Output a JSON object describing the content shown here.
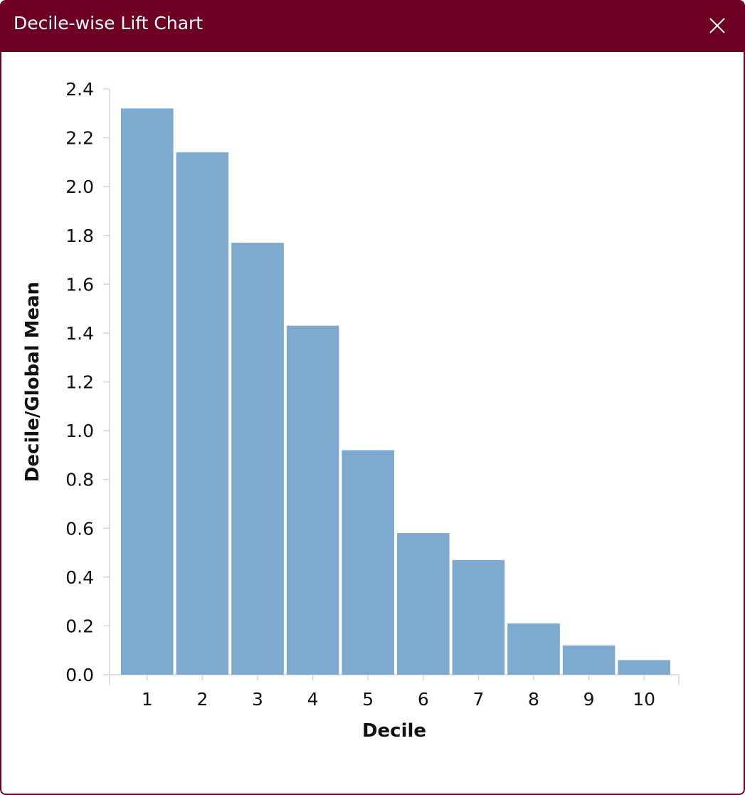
{
  "window": {
    "title": "Decile-wise Lift Chart",
    "close_icon": "close-icon",
    "title_bar_color": "#6e0023"
  },
  "chart_data": {
    "type": "bar",
    "title": "",
    "xlabel": "Decile",
    "ylabel": "Decile/Global Mean",
    "categories": [
      "1",
      "2",
      "3",
      "4",
      "5",
      "6",
      "7",
      "8",
      "9",
      "10"
    ],
    "values": [
      2.32,
      2.14,
      1.77,
      1.43,
      0.92,
      0.58,
      0.47,
      0.21,
      0.12,
      0.06
    ],
    "ylim": [
      0,
      2.4
    ],
    "yticks": [
      "0.0",
      "0.2",
      "0.4",
      "0.6",
      "0.8",
      "1.0",
      "1.2",
      "1.4",
      "1.6",
      "1.8",
      "2.0",
      "2.2",
      "2.4"
    ],
    "bar_color": "#7eaacf",
    "grid": false,
    "legend": "none"
  }
}
